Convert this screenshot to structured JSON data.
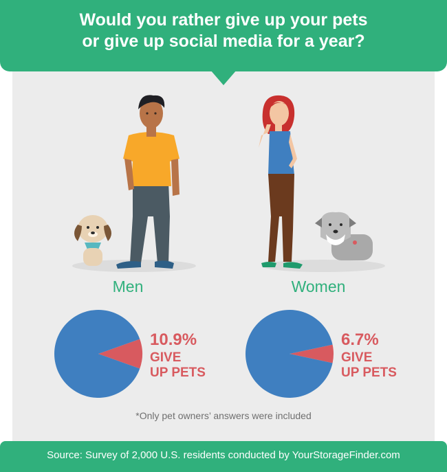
{
  "header": {
    "title_line1": "Would you rather give up your pets",
    "title_line2": "or give up social media for a year?"
  },
  "colors": {
    "header_green": "#30b07c",
    "panel_gray": "#ececec",
    "pie_blue": "#3f7fc0",
    "pie_red": "#d85a5f"
  },
  "illustrations": {
    "men": {
      "person": "man-figure-icon",
      "pet": "dog-icon"
    },
    "women": {
      "person": "woman-figure-icon",
      "pet": "schnauzer-dog-icon"
    }
  },
  "chart_data": [
    {
      "type": "pie",
      "group": "Men",
      "slices": [
        {
          "label": "GIVE UP PETS",
          "value": 10.9,
          "value_label": "10.9%",
          "color": "#d85a5f"
        },
        {
          "label": "",
          "value": 89.1,
          "color": "#3f7fc0"
        }
      ]
    },
    {
      "type": "pie",
      "group": "Women",
      "slices": [
        {
          "label": "GIVE UP PETS",
          "value": 6.7,
          "value_label": "6.7%",
          "color": "#d85a5f"
        },
        {
          "label": "",
          "value": 93.3,
          "color": "#3f7fc0"
        }
      ]
    }
  ],
  "labels": {
    "give_line1": "GIVE",
    "give_line2": "UP PETS"
  },
  "footnote": "*Only pet owners’ answers were included",
  "footer": {
    "source": "Source: Survey of 2,000 U.S. residents conducted by YourStorageFinder.com"
  }
}
